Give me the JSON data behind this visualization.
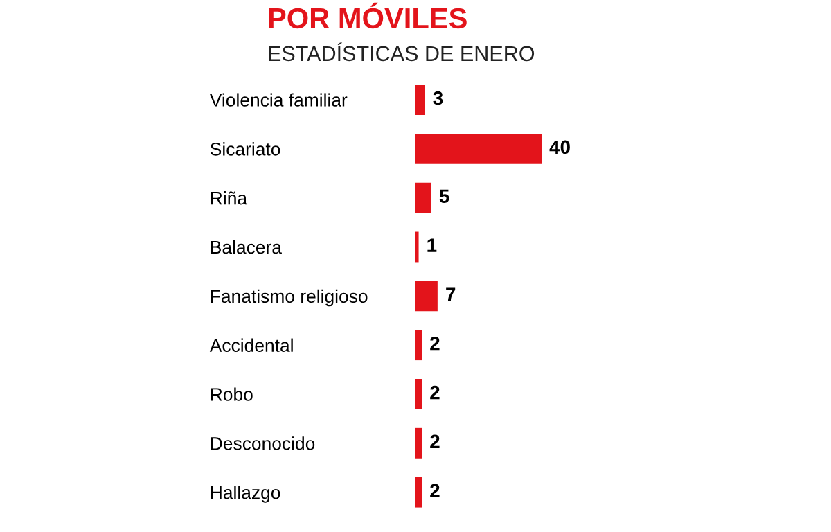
{
  "chart_data": {
    "type": "bar",
    "orientation": "horizontal",
    "title": "POR MÓVILES",
    "subtitle": "ESTADÍSTICAS DE ENERO",
    "categories": [
      "Violencia familiar",
      "Sicariato",
      "Riña",
      "Balacera",
      "Fanatismo religioso",
      "Accidental",
      "Robo",
      "Desconocido",
      "Hallazgo"
    ],
    "values": [
      3,
      40,
      5,
      1,
      7,
      2,
      2,
      2,
      2
    ],
    "color": "#e3141b",
    "data_labels": true,
    "grid": false,
    "legend": false
  }
}
